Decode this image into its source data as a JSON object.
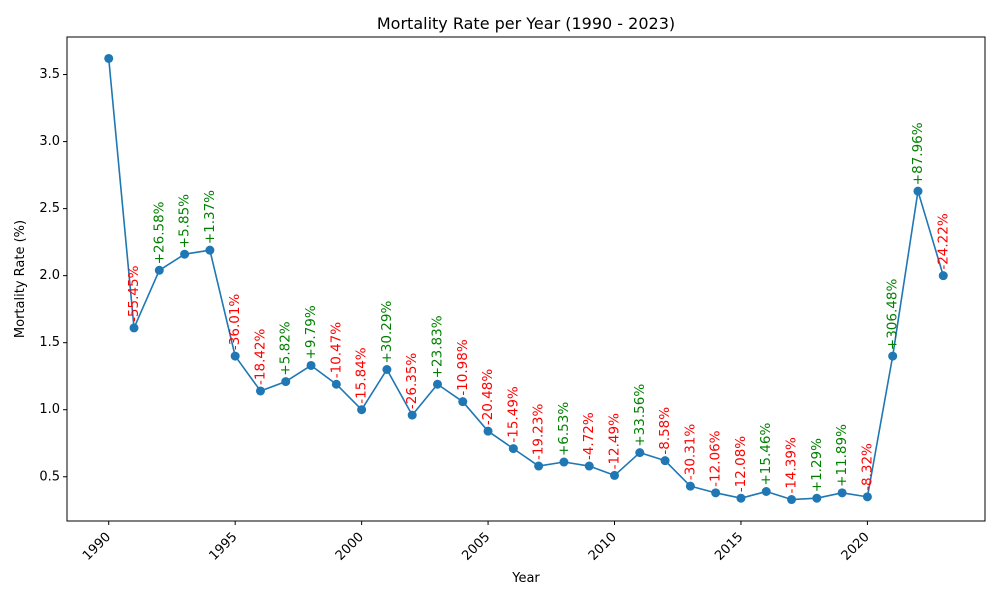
{
  "chart_data": {
    "type": "line",
    "title": "Mortality Rate per Year (1990 - 2023)",
    "xlabel": "Year",
    "ylabel": "Mortality Rate (%)",
    "xlim": [
      1988.35,
      2024.65
    ],
    "ylim": [
      0.17,
      3.78
    ],
    "xticks": [
      1990,
      1995,
      2000,
      2005,
      2010,
      2015,
      2020
    ],
    "yticks": [
      0.5,
      1.0,
      1.5,
      2.0,
      2.5,
      3.0,
      3.5
    ],
    "ytick_labels": [
      "0.5",
      "1.0",
      "1.5",
      "2.0",
      "2.5",
      "3.0",
      "3.5"
    ],
    "grid": false,
    "legend": "none",
    "colors": {
      "line": "#1f77b4",
      "increase": "#008000",
      "decrease": "#ff0000"
    },
    "series": [
      {
        "x": [
          1990,
          1991,
          1992,
          1993,
          1994,
          1995,
          1996,
          1997,
          1998,
          1999,
          2000,
          2001,
          2002,
          2003,
          2004,
          2005,
          2006,
          2007,
          2008,
          2009,
          2010,
          2011,
          2012,
          2013,
          2014,
          2015,
          2016,
          2017,
          2018,
          2019,
          2020,
          2021,
          2022,
          2023
        ],
        "values": [
          3.62,
          1.61,
          2.04,
          2.16,
          2.19,
          1.4,
          1.14,
          1.21,
          1.33,
          1.19,
          1.0,
          1.3,
          0.96,
          1.19,
          1.06,
          0.84,
          0.71,
          0.58,
          0.61,
          0.58,
          0.51,
          0.68,
          0.62,
          0.43,
          0.38,
          0.34,
          0.39,
          0.33,
          0.34,
          0.38,
          0.35,
          1.4,
          2.63,
          2.0
        ]
      }
    ],
    "annotations": [
      "",
      "-55.45%",
      "+26.58%",
      "+5.85%",
      "+1.37%",
      "-36.01%",
      "-18.42%",
      "+5.82%",
      "+9.79%",
      "-10.47%",
      "-15.84%",
      "+30.29%",
      "-26.35%",
      "+23.83%",
      "-10.98%",
      "-20.48%",
      "-15.49%",
      "-19.23%",
      "+6.53%",
      "-4.72%",
      "-12.49%",
      "+33.56%",
      "-8.58%",
      "-30.31%",
      "-12.06%",
      "-12.08%",
      "+15.46%",
      "-14.39%",
      "+1.29%",
      "+11.89%",
      "-8.32%",
      "+306.48%",
      "+87.96%",
      "-24.22%"
    ]
  }
}
